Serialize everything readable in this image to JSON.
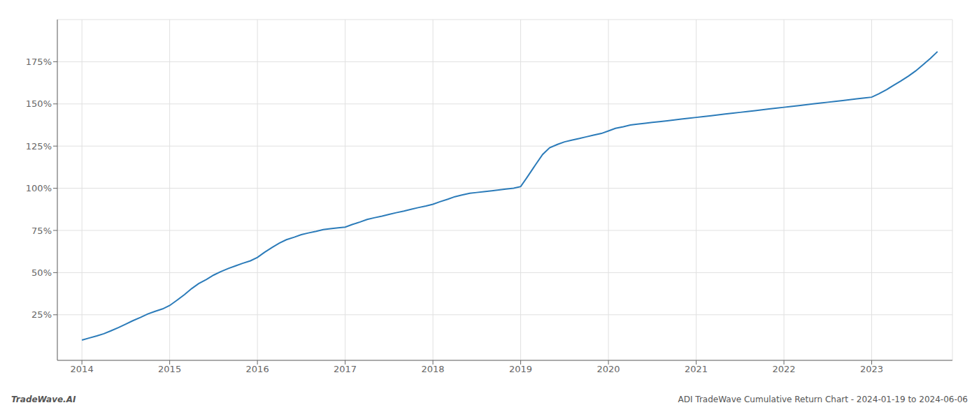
{
  "chart_data": {
    "type": "line",
    "annotations": [
      "TradeWave.AI",
      "ADI TradeWave Cumulative Return Chart - 2024-01-19 to 2024-06-06"
    ],
    "color": "#2b7bb9",
    "x": [
      2014.0,
      2014.08,
      2014.17,
      2014.25,
      2014.33,
      2014.42,
      2014.5,
      2014.58,
      2014.67,
      2014.75,
      2014.83,
      2014.92,
      2015.0,
      2015.08,
      2015.17,
      2015.25,
      2015.33,
      2015.42,
      2015.5,
      2015.58,
      2015.67,
      2015.75,
      2015.83,
      2015.92,
      2016.0,
      2016.08,
      2016.17,
      2016.25,
      2016.33,
      2016.42,
      2016.5,
      2016.58,
      2016.67,
      2016.75,
      2016.83,
      2016.92,
      2017.0,
      2017.08,
      2017.17,
      2017.25,
      2017.33,
      2017.42,
      2017.5,
      2017.58,
      2017.67,
      2017.75,
      2017.83,
      2017.92,
      2018.0,
      2018.08,
      2018.17,
      2018.25,
      2018.33,
      2018.42,
      2018.5,
      2018.58,
      2018.67,
      2018.75,
      2018.83,
      2018.92,
      2019.0,
      2019.08,
      2019.17,
      2019.25,
      2019.33,
      2019.42,
      2019.5,
      2019.58,
      2019.67,
      2019.75,
      2019.83,
      2019.92,
      2020.0,
      2020.08,
      2020.17,
      2020.25,
      2020.33,
      2020.42,
      2020.5,
      2020.58,
      2020.67,
      2020.75,
      2020.83,
      2020.92,
      2021.0,
      2021.08,
      2021.17,
      2021.25,
      2021.33,
      2021.42,
      2021.5,
      2021.58,
      2021.67,
      2021.75,
      2021.83,
      2021.92,
      2022.0,
      2022.08,
      2022.17,
      2022.25,
      2022.33,
      2022.42,
      2022.5,
      2022.58,
      2022.67,
      2022.75,
      2022.83,
      2022.92,
      2023.0,
      2023.08,
      2023.17,
      2023.25,
      2023.33,
      2023.42,
      2023.5,
      2023.58,
      2023.67,
      2023.75
    ],
    "values": [
      10.0,
      11.2,
      12.5,
      13.8,
      15.5,
      17.5,
      19.5,
      21.5,
      23.5,
      25.5,
      27.0,
      28.5,
      30.5,
      33.5,
      37.0,
      40.5,
      43.5,
      46.0,
      48.5,
      50.5,
      52.5,
      54.0,
      55.5,
      57.0,
      59.0,
      62.0,
      65.0,
      67.5,
      69.5,
      71.0,
      72.5,
      73.5,
      74.5,
      75.5,
      76.0,
      76.5,
      77.0,
      78.5,
      80.0,
      81.5,
      82.5,
      83.5,
      84.5,
      85.5,
      86.5,
      87.5,
      88.5,
      89.5,
      90.5,
      92.0,
      93.5,
      95.0,
      96.0,
      97.0,
      97.5,
      98.0,
      98.5,
      99.0,
      99.5,
      100.0,
      101.0,
      107.0,
      114.0,
      120.0,
      124.0,
      126.0,
      127.5,
      128.5,
      129.5,
      130.5,
      131.5,
      132.5,
      134.0,
      135.5,
      136.5,
      137.5,
      138.0,
      138.5,
      139.0,
      139.5,
      140.0,
      140.5,
      141.0,
      141.5,
      142.0,
      142.5,
      143.0,
      143.5,
      144.0,
      144.5,
      145.0,
      145.5,
      146.0,
      146.5,
      147.0,
      147.5,
      148.0,
      148.5,
      149.0,
      149.5,
      150.0,
      150.5,
      151.0,
      151.5,
      152.0,
      152.5,
      153.0,
      153.5,
      154.0,
      156.0,
      158.5,
      161.0,
      163.5,
      166.5,
      169.5,
      173.0,
      177.0,
      181.0
    ],
    "xlim": [
      2013.72,
      2023.92
    ],
    "ylim": [
      -2,
      200
    ],
    "xticks": [
      2014,
      2015,
      2016,
      2017,
      2018,
      2019,
      2020,
      2021,
      2022,
      2023
    ],
    "yticks": [
      {
        "value": 25,
        "label": "25%"
      },
      {
        "value": 50,
        "label": "50%"
      },
      {
        "value": 75,
        "label": "75%"
      },
      {
        "value": 100,
        "label": "100%"
      },
      {
        "value": 125,
        "label": "125%"
      },
      {
        "value": 150,
        "label": "150%"
      },
      {
        "value": 175,
        "label": "175%"
      }
    ],
    "grid": true
  }
}
